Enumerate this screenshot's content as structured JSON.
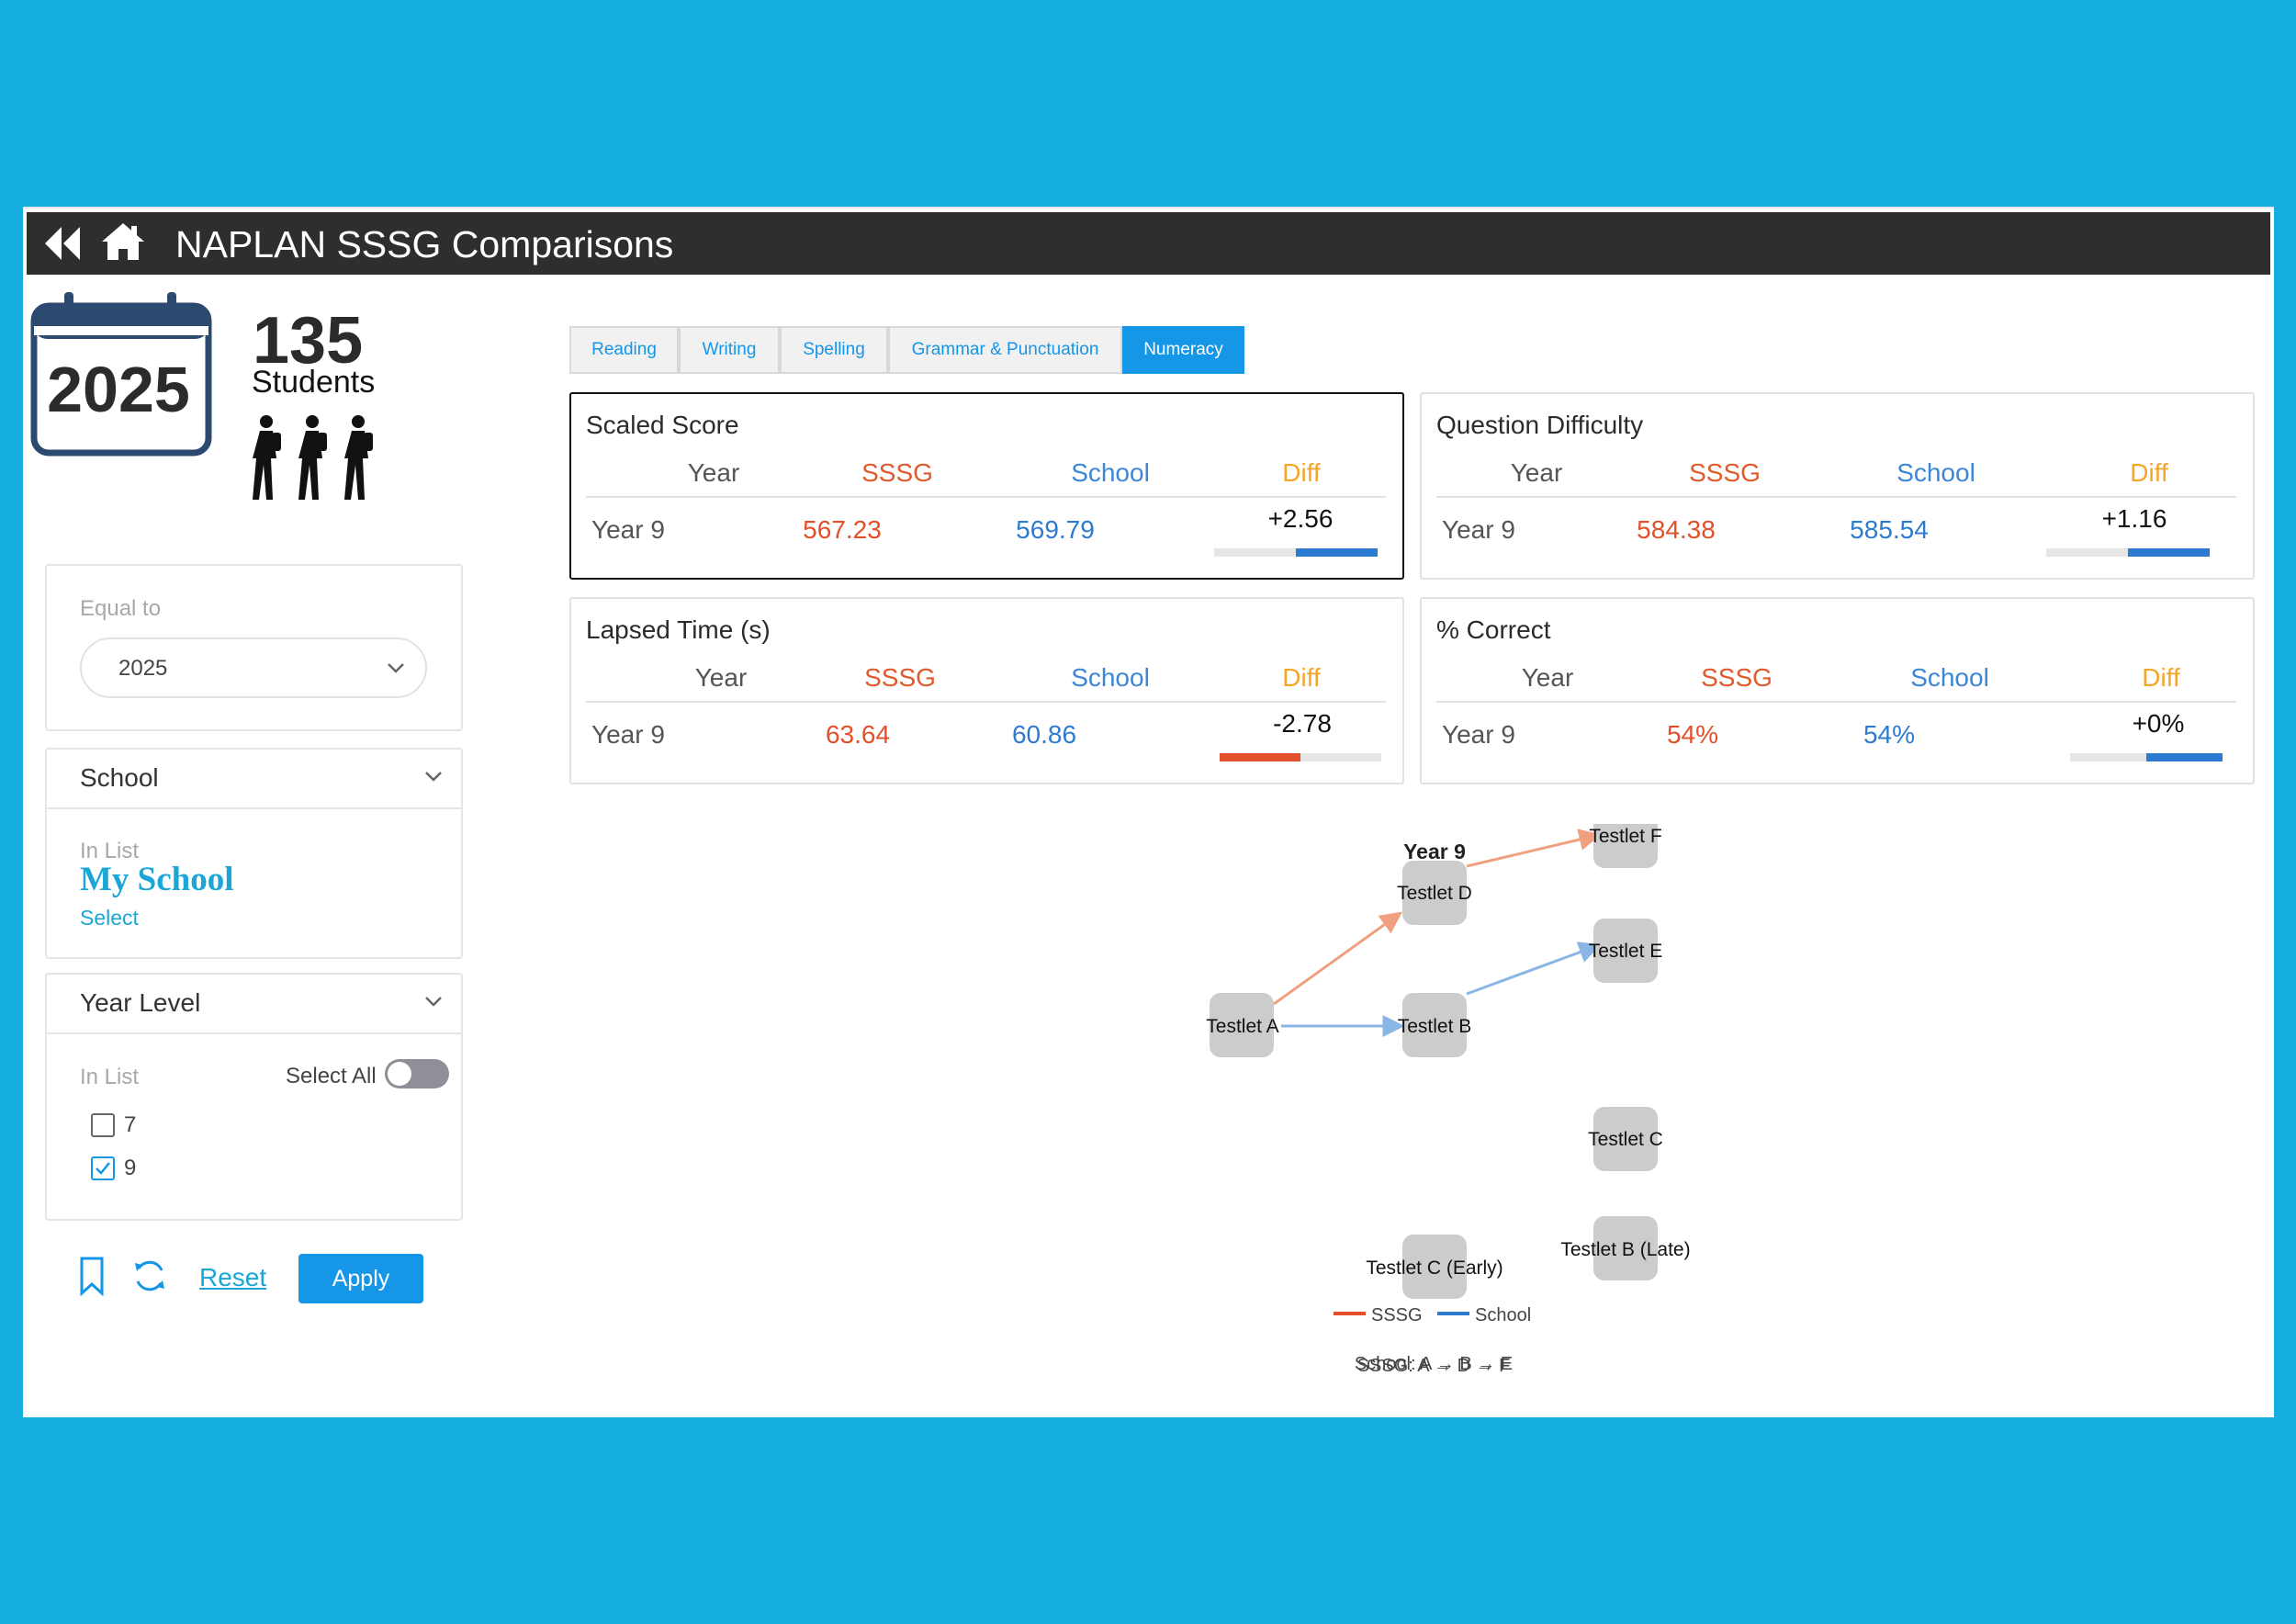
{
  "header": {
    "title": "NAPLAN SSSG Comparisons",
    "back_icon": "double-chevron-left-icon",
    "home_icon": "home-icon"
  },
  "summary": {
    "year": "2025",
    "student_count": "135",
    "student_label": "Students"
  },
  "filters": {
    "equal_to": {
      "label": "Equal to",
      "value": "2025"
    },
    "school": {
      "title": "School",
      "list_label": "In List",
      "value": "My School",
      "select_link": "Select"
    },
    "year_level": {
      "title": "Year Level",
      "list_label": "In List",
      "select_all_label": "Select All",
      "select_all_on": false,
      "options": [
        {
          "label": "7",
          "checked": false
        },
        {
          "label": "9",
          "checked": true
        }
      ]
    },
    "reset_label": "Reset",
    "apply_label": "Apply"
  },
  "tabs": [
    {
      "label": "Reading",
      "active": false
    },
    {
      "label": "Writing",
      "active": false
    },
    {
      "label": "Spelling",
      "active": false
    },
    {
      "label": "Grammar & Punctuation",
      "active": false
    },
    {
      "label": "Numeracy",
      "active": true
    }
  ],
  "metrics": [
    {
      "title": "Scaled Score",
      "headers": [
        "Year",
        "SSSG",
        "School",
        "Diff"
      ],
      "year": "Year 9",
      "sssg": "567.23",
      "school": "569.79",
      "diff": "+2.56",
      "diff_fraction": 0.5,
      "diff_direction": "positive"
    },
    {
      "title": "Question Difficulty",
      "headers": [
        "Year",
        "SSSG",
        "School",
        "Diff"
      ],
      "year": "Year 9",
      "sssg": "584.38",
      "school": "585.54",
      "diff": "+1.16",
      "diff_fraction": 0.5,
      "diff_direction": "positive"
    },
    {
      "title": "Lapsed Time (s)",
      "headers": [
        "Year",
        "SSSG",
        "School",
        "Diff"
      ],
      "year": "Year 9",
      "sssg": "63.64",
      "school": "60.86",
      "diff": "-2.78",
      "diff_fraction": 0.5,
      "diff_direction": "negative"
    },
    {
      "title": "% Correct",
      "headers": [
        "Year",
        "SSSG",
        "School",
        "Diff"
      ],
      "year": "Year 9",
      "sssg": "54%",
      "school": "54%",
      "diff": "+0%",
      "diff_fraction": 0.5,
      "diff_direction": "positive"
    }
  ],
  "pathway": {
    "title": "Year 9",
    "nodes": [
      "Testlet A",
      "Testlet B",
      "Testlet C",
      "Testlet D",
      "Testlet E",
      "Testlet F",
      "Testlet C (Early)",
      "Testlet B (Late)"
    ],
    "sssg_path": [
      "Testlet A",
      "Testlet D",
      "Testlet F"
    ],
    "school_path": [
      "Testlet A",
      "Testlet B",
      "Testlet E"
    ],
    "legend": [
      {
        "label": "SSSG",
        "color": "#e2502a"
      },
      {
        "label": "School",
        "color": "#2d7bd0"
      }
    ],
    "sssg_summary": "SSSG: A → D → F",
    "school_summary": "School: A → B → E"
  },
  "colors": {
    "sssg": "#e2502a",
    "school": "#2d7bd0",
    "diff_header": "#f4a62a",
    "accent": "#1596e6",
    "header_bg": "#2e2e2e"
  }
}
